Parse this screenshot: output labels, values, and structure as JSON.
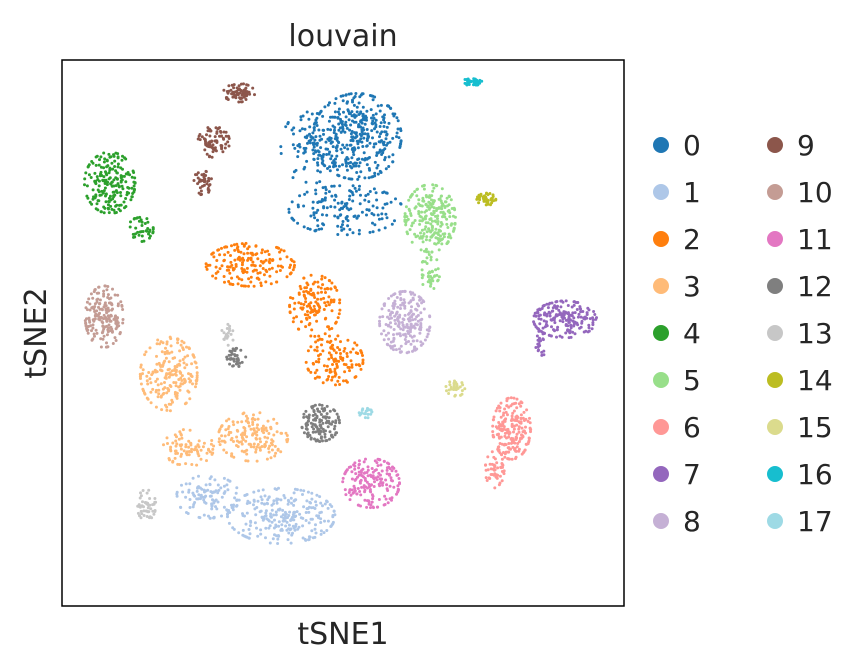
{
  "chart_data": {
    "type": "scatter",
    "title": "louvain",
    "xlabel": "tSNE1",
    "ylabel": "tSNE2",
    "xlim": [
      -100,
      100
    ],
    "ylim": [
      -100,
      100
    ],
    "grid": false,
    "legend_placement": "right",
    "legend_columns": 2,
    "series": [
      {
        "name": "0",
        "color": "#1f77b4",
        "blobs": [
          [
            5,
            72,
            14,
            14,
            380
          ],
          [
            1,
            45,
            18,
            8,
            160
          ],
          [
            -12,
            68,
            9,
            12,
            90
          ]
        ]
      },
      {
        "name": "1",
        "color": "#aec7e8",
        "blobs": [
          [
            -22,
            -67,
            17,
            9,
            260
          ],
          [
            -48,
            -60,
            10,
            7,
            110
          ]
        ]
      },
      {
        "name": "2",
        "color": "#ff7f0e",
        "blobs": [
          [
            -33,
            25,
            14,
            7,
            180
          ],
          [
            -10,
            10,
            8,
            10,
            140
          ],
          [
            -3,
            -10,
            9,
            8,
            120
          ]
        ]
      },
      {
        "name": "3",
        "color": "#ffbb78",
        "blobs": [
          [
            -62,
            -15,
            9,
            12,
            200
          ],
          [
            -32,
            -38,
            11,
            8,
            160
          ],
          [
            -55,
            -42,
            8,
            6,
            80
          ]
        ]
      },
      {
        "name": "4",
        "color": "#2ca02c",
        "blobs": [
          [
            -83,
            55,
            8,
            10,
            200
          ],
          [
            -72,
            38,
            4,
            4,
            40
          ]
        ]
      },
      {
        "name": "5",
        "color": "#98df8a",
        "blobs": [
          [
            31,
            42,
            8,
            11,
            240
          ],
          [
            31,
            22,
            3,
            6,
            40
          ]
        ]
      },
      {
        "name": "6",
        "color": "#ff9896",
        "blobs": [
          [
            60,
            -35,
            6,
            10,
            200
          ],
          [
            54,
            -50,
            3,
            6,
            50
          ]
        ]
      },
      {
        "name": "7",
        "color": "#9467bd",
        "blobs": [
          [
            79,
            5,
            10,
            6,
            200
          ],
          [
            70,
            -5,
            2,
            5,
            20
          ]
        ]
      },
      {
        "name": "8",
        "color": "#c5b0d5",
        "blobs": [
          [
            22,
            4,
            8,
            10,
            220
          ]
        ]
      },
      {
        "name": "9",
        "color": "#8c564b",
        "blobs": [
          [
            -37,
            88,
            5,
            3,
            70
          ],
          [
            -46,
            70,
            5,
            5,
            80
          ],
          [
            -50,
            55,
            3,
            4,
            40
          ]
        ]
      },
      {
        "name": "10",
        "color": "#c49c94",
        "blobs": [
          [
            -85,
            6,
            6,
            10,
            180
          ]
        ]
      },
      {
        "name": "11",
        "color": "#e377c2",
        "blobs": [
          [
            10,
            -55,
            9,
            8,
            180
          ]
        ]
      },
      {
        "name": "12",
        "color": "#7f7f7f",
        "blobs": [
          [
            -8,
            -33,
            6,
            6,
            130
          ],
          [
            -38,
            -9,
            3,
            3,
            40
          ]
        ]
      },
      {
        "name": "13",
        "color": "#c7c7c7",
        "blobs": [
          [
            -70,
            -63,
            3,
            5,
            50
          ],
          [
            -41,
            0,
            2,
            4,
            20
          ]
        ]
      },
      {
        "name": "14",
        "color": "#bcbd22",
        "blobs": [
          [
            51,
            49,
            3,
            2,
            40
          ]
        ]
      },
      {
        "name": "15",
        "color": "#dbdb8d",
        "blobs": [
          [
            40,
            -20,
            3,
            3,
            30
          ]
        ]
      },
      {
        "name": "16",
        "color": "#17becf",
        "blobs": [
          [
            46,
            92,
            3,
            1.2,
            40
          ]
        ]
      },
      {
        "name": "17",
        "color": "#9edae5",
        "blobs": [
          [
            8,
            -29,
            2,
            2,
            20
          ]
        ]
      }
    ]
  }
}
